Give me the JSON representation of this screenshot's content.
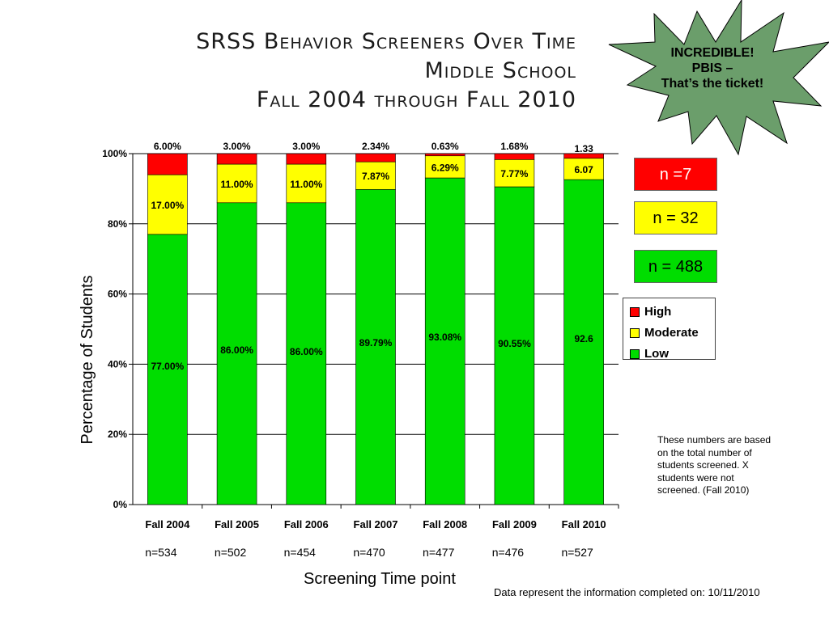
{
  "title": {
    "line1": "SRSS Behavior Screeners Over Time",
    "line2": "Middle School",
    "line3": "Fall 2004 through Fall 2010"
  },
  "callout": {
    "line1": "INCREDIBLE!",
    "line2": "PBIS –",
    "line3": "That’s the ticket!"
  },
  "n_boxes": [
    {
      "label": "n =7",
      "color": "#ff0000",
      "text_color": "#ffffff"
    },
    {
      "label": "n = 32",
      "color": "#ffff00",
      "text_color": "#000000"
    },
    {
      "label": "n = 488",
      "color": "#00dd00",
      "text_color": "#000000"
    }
  ],
  "note": "These numbers are based on the total number of students screened. X students were not screened. (Fall 2010)",
  "footer": "Data represent the information completed on: 10/11/2010",
  "colors": {
    "high": "#ff0000",
    "moderate": "#ffff00",
    "low": "#00dd00",
    "star": "#6b9e6b"
  },
  "chart_data": {
    "type": "bar",
    "stacked": true,
    "categories": [
      "Fall 2004",
      "Fall 2005",
      "Fall 2006",
      "Fall 2007",
      "Fall 2008",
      "Fall 2009",
      "Fall 2010"
    ],
    "n_labels": [
      "n=534",
      "n=502",
      "n=454",
      "n=470",
      "n=477",
      "n=476",
      "n=527"
    ],
    "series": [
      {
        "name": "Low",
        "color": "#00dd00",
        "values": [
          77.0,
          86.0,
          86.0,
          89.79,
          93.08,
          90.55,
          92.6
        ],
        "labels": [
          "77.00%",
          "86.00%",
          "86.00%",
          "89.79%",
          "93.08%",
          "90.55%",
          "92.6"
        ]
      },
      {
        "name": "Moderate",
        "color": "#ffff00",
        "values": [
          17.0,
          11.0,
          11.0,
          7.87,
          6.29,
          7.77,
          6.07
        ],
        "labels": [
          "17.00%",
          "11.00%",
          "11.00%",
          "7.87%",
          "6.29%",
          "7.77%",
          "6.07"
        ]
      },
      {
        "name": "High",
        "color": "#ff0000",
        "values": [
          6.0,
          3.0,
          3.0,
          2.34,
          0.63,
          1.68,
          1.33
        ],
        "labels": [
          "6.00%",
          "3.00%",
          "3.00%",
          "2.34%",
          "0.63%",
          "1.68%",
          "1.33"
        ]
      }
    ],
    "legend_order": [
      "High",
      "Moderate",
      "Low"
    ],
    "yticks": [
      "0%",
      "20%",
      "40%",
      "60%",
      "80%",
      "100%"
    ],
    "ylim": [
      0,
      100
    ],
    "xlabel": "Screening Time point",
    "ylabel": "Percentage of Students",
    "grid": true,
    "legend_position": "right"
  }
}
